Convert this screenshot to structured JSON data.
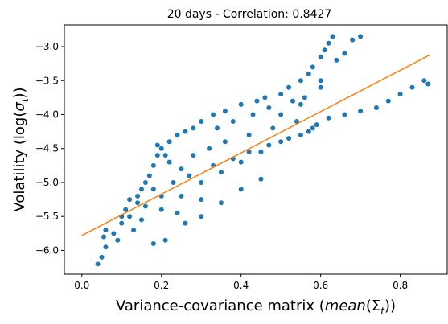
{
  "chart_data": {
    "type": "scatter",
    "title": "20 days - Correlation: 0.8427",
    "xlabel": "Variance-covariance matrix (",
    "xlabel_math": "mean",
    "xlabel_tail": "(Σ",
    "xlabel_sub": "t",
    "xlabel_end": "))",
    "ylabel": "Volatility (log(",
    "ylabel_math": "σ",
    "ylabel_sub": "t",
    "ylabel_end": "))",
    "xlim": [
      -0.044,
      0.918
    ],
    "ylim": [
      -6.35,
      -2.68
    ],
    "xticks": [
      0.0,
      0.2,
      0.4,
      0.6,
      0.8
    ],
    "xtick_labels": [
      "0.0",
      "0.2",
      "0.4",
      "0.6",
      "0.8"
    ],
    "yticks": [
      -6.0,
      -5.5,
      -5.0,
      -4.5,
      -4.0,
      -3.5,
      -3.0
    ],
    "ytick_labels": [
      "−6.0",
      "−5.5",
      "−5.0",
      "−4.5",
      "−4.0",
      "−3.5",
      "−3.0"
    ],
    "grid": false,
    "series": [
      {
        "kind": "scatter",
        "color": "#1f77b4",
        "points": [
          [
            0.04,
            -6.2
          ],
          [
            0.05,
            -6.1
          ],
          [
            0.06,
            -5.95
          ],
          [
            0.055,
            -5.8
          ],
          [
            0.06,
            -5.7
          ],
          [
            0.08,
            -5.75
          ],
          [
            0.1,
            -5.6
          ],
          [
            0.12,
            -5.5
          ],
          [
            0.09,
            -5.85
          ],
          [
            0.11,
            -5.4
          ],
          [
            0.14,
            -5.3
          ],
          [
            0.15,
            -5.1
          ],
          [
            0.16,
            -5.0
          ],
          [
            0.17,
            -4.9
          ],
          [
            0.18,
            -4.75
          ],
          [
            0.19,
            -4.6
          ],
          [
            0.2,
            -4.5
          ],
          [
            0.22,
            -4.4
          ],
          [
            0.24,
            -4.3
          ],
          [
            0.26,
            -4.25
          ],
          [
            0.28,
            -4.2
          ],
          [
            0.3,
            -4.1
          ],
          [
            0.33,
            -4.0
          ],
          [
            0.36,
            -3.95
          ],
          [
            0.4,
            -3.85
          ],
          [
            0.44,
            -3.8
          ],
          [
            0.46,
            -3.75
          ],
          [
            0.5,
            -3.7
          ],
          [
            0.52,
            -3.6
          ],
          [
            0.55,
            -3.5
          ],
          [
            0.57,
            -3.4
          ],
          [
            0.58,
            -3.3
          ],
          [
            0.6,
            -3.15
          ],
          [
            0.61,
            -3.05
          ],
          [
            0.62,
            -2.95
          ],
          [
            0.63,
            -2.85
          ],
          [
            0.68,
            -2.9
          ],
          [
            0.7,
            -2.85
          ],
          [
            0.66,
            -3.1
          ],
          [
            0.64,
            -3.2
          ],
          [
            0.6,
            -3.6
          ],
          [
            0.62,
            -4.05
          ],
          [
            0.66,
            -4.0
          ],
          [
            0.7,
            -3.95
          ],
          [
            0.74,
            -3.9
          ],
          [
            0.77,
            -3.8
          ],
          [
            0.8,
            -3.7
          ],
          [
            0.83,
            -3.6
          ],
          [
            0.86,
            -3.5
          ],
          [
            0.87,
            -3.55
          ],
          [
            0.58,
            -4.2
          ],
          [
            0.55,
            -4.3
          ],
          [
            0.5,
            -4.4
          ],
          [
            0.45,
            -4.55
          ],
          [
            0.4,
            -4.7
          ],
          [
            0.35,
            -4.85
          ],
          [
            0.3,
            -5.0
          ],
          [
            0.25,
            -5.2
          ],
          [
            0.2,
            -5.4
          ],
          [
            0.15,
            -5.55
          ],
          [
            0.13,
            -5.7
          ],
          [
            0.21,
            -5.85
          ],
          [
            0.18,
            -5.9
          ],
          [
            0.3,
            -5.5
          ],
          [
            0.35,
            -5.3
          ],
          [
            0.4,
            -5.1
          ],
          [
            0.45,
            -4.95
          ],
          [
            0.25,
            -4.8
          ],
          [
            0.22,
            -4.7
          ],
          [
            0.28,
            -4.6
          ],
          [
            0.32,
            -4.5
          ],
          [
            0.36,
            -4.4
          ],
          [
            0.42,
            -4.3
          ],
          [
            0.48,
            -4.2
          ],
          [
            0.5,
            -4.0
          ],
          [
            0.54,
            -4.1
          ],
          [
            0.26,
            -5.6
          ],
          [
            0.2,
            -5.2
          ],
          [
            0.18,
            -5.1
          ],
          [
            0.23,
            -5.0
          ],
          [
            0.27,
            -4.9
          ],
          [
            0.33,
            -4.75
          ],
          [
            0.38,
            -4.65
          ],
          [
            0.42,
            -4.55
          ],
          [
            0.47,
            -4.45
          ],
          [
            0.52,
            -4.35
          ],
          [
            0.57,
            -4.25
          ],
          [
            0.59,
            -4.15
          ],
          [
            0.24,
            -5.45
          ],
          [
            0.3,
            -5.25
          ],
          [
            0.16,
            -5.35
          ],
          [
            0.14,
            -5.2
          ],
          [
            0.12,
            -5.25
          ],
          [
            0.1,
            -5.5
          ],
          [
            0.19,
            -4.45
          ],
          [
            0.21,
            -4.6
          ],
          [
            0.34,
            -4.2
          ],
          [
            0.38,
            -4.1
          ],
          [
            0.43,
            -4.0
          ],
          [
            0.47,
            -3.9
          ],
          [
            0.53,
            -3.8
          ],
          [
            0.56,
            -3.75
          ],
          [
            0.6,
            -3.5
          ],
          [
            0.55,
            -3.85
          ]
        ]
      },
      {
        "kind": "line",
        "color": "#ff7f0e",
        "x": [
          0.0,
          0.875
        ],
        "y": [
          -5.78,
          -3.12
        ]
      }
    ]
  }
}
